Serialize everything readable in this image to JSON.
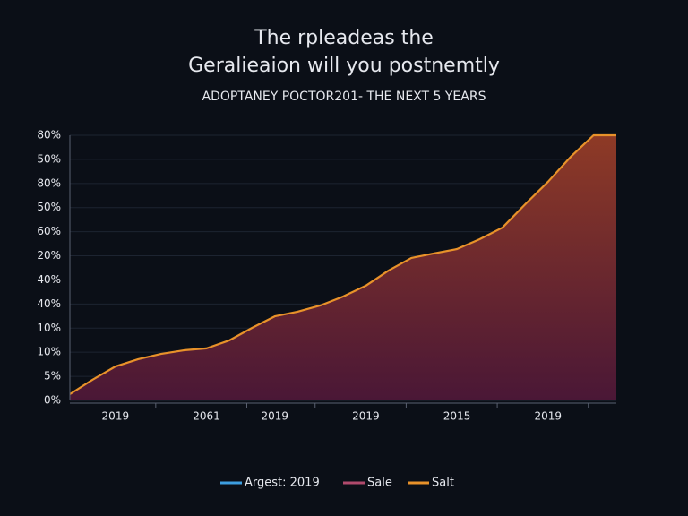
{
  "chart_data": {
    "type": "area",
    "title": [
      "The rpleadeas the",
      "Geralieaion will you postnemtly"
    ],
    "subtitle": "ADOPTANEY POCTOR201- THE NEXT 5 YEARS",
    "categories": [
      null,
      null,
      "2019",
      null,
      null,
      null,
      "2061",
      null,
      null,
      "2019",
      null,
      null,
      null,
      "2019",
      null,
      null,
      null,
      "2015",
      null,
      null,
      null,
      "2019",
      null,
      null,
      null
    ],
    "series": [
      {
        "color": "#e8922a",
        "fill_top": "#8e3a26",
        "fill_bottom": "#4a1736",
        "values": [
          0.26,
          0.86,
          1.41,
          1.71,
          1.93,
          2.08,
          2.16,
          2.49,
          3.01,
          3.49,
          3.68,
          3.94,
          4.31,
          4.76,
          5.39,
          5.91,
          6.1,
          6.28,
          6.69,
          7.17,
          8.14,
          9.07,
          10.11,
          11.0,
          11.0
        ]
      }
    ],
    "legend": [
      {
        "label": "Argest: 2019",
        "color": "#3d9ee0"
      },
      {
        "label": "Sale",
        "color": "#b04a6c"
      },
      {
        "label": "Salt",
        "color": "#e8922a"
      }
    ],
    "ylim": [
      0,
      11
    ],
    "yticks": [
      {
        "value": 0,
        "label": "0%"
      },
      {
        "value": 1,
        "label": "5%"
      },
      {
        "value": 2,
        "label": "10%"
      },
      {
        "value": 3,
        "label": "10%"
      },
      {
        "value": 4,
        "label": "40%"
      },
      {
        "value": 5,
        "label": "40%"
      },
      {
        "value": 6,
        "label": "20%"
      },
      {
        "value": 7,
        "label": "60%"
      },
      {
        "value": 8,
        "label": "50%"
      },
      {
        "value": 9,
        "label": "80%"
      },
      {
        "value": 10,
        "label": "50%"
      },
      {
        "value": 11,
        "label": "80%"
      }
    ],
    "grid": true
  }
}
